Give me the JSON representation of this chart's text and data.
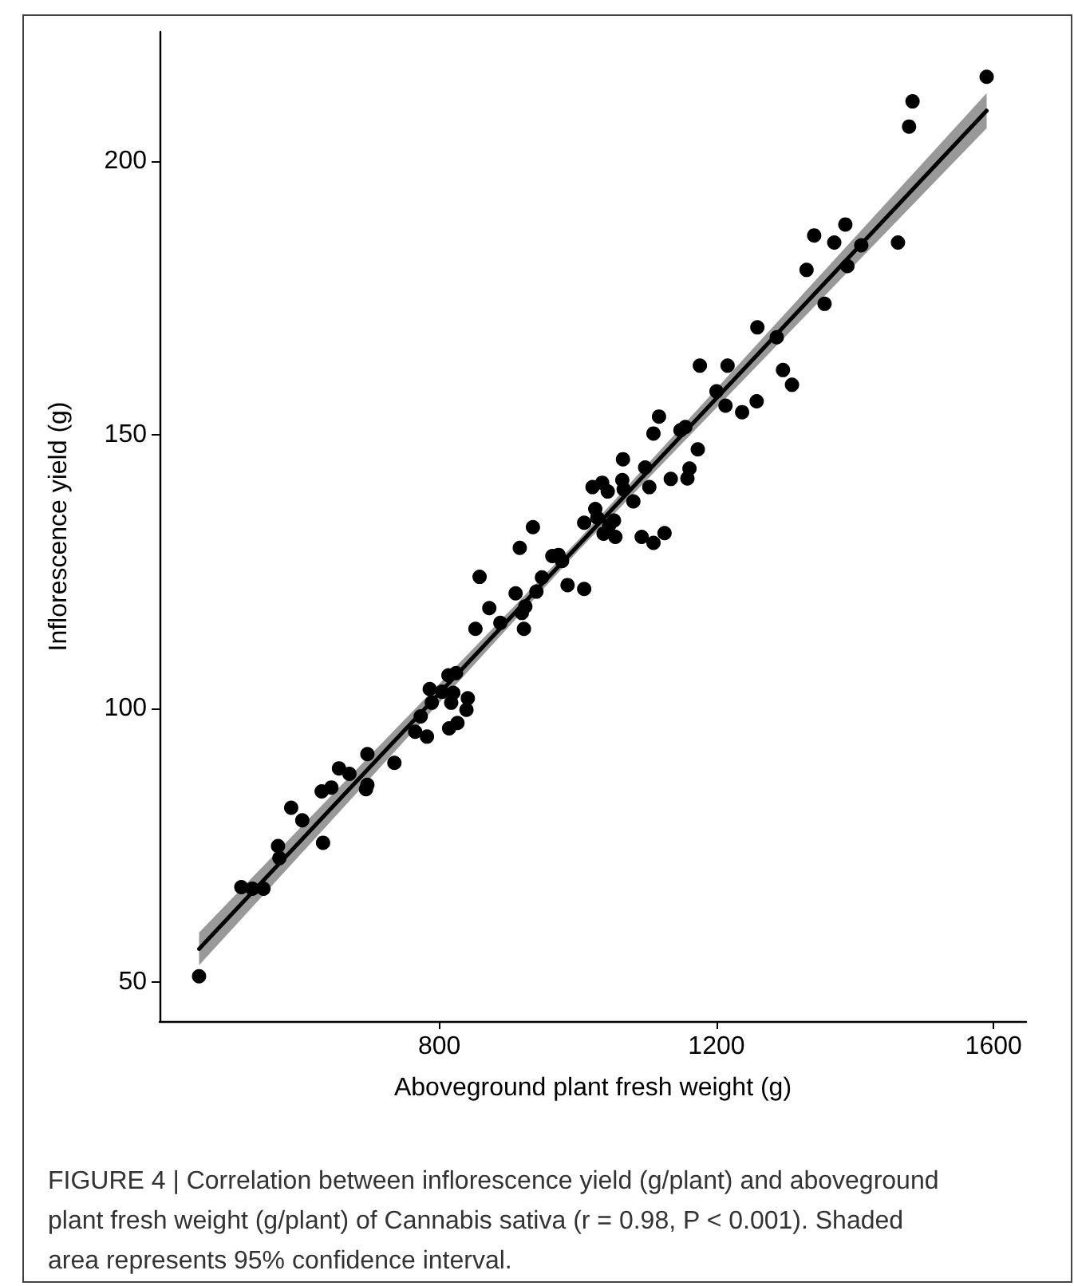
{
  "chart_data": {
    "type": "scatter",
    "xlabel": "Aboveground plant fresh weight (g)",
    "ylabel": "Inflorescence yield (g)",
    "annotations": [
      "FIGURE 4 | Correlation between inflorescence yield (g/plant) and aboveground plant fresh weight (g/plant) of Cannabis sativa (r = 0.98, P < 0.001). Shaded area represents 95% confidence interval."
    ],
    "xlim": [
      396,
      1647
    ],
    "xticks": [
      800,
      1200,
      1600
    ],
    "ylim": [
      42.8,
      223.6
    ],
    "yticks": [
      50,
      100,
      150,
      200
    ],
    "grid": false,
    "marker": "circle",
    "series": [
      {
        "color": "#000000",
        "x": [
          453,
          514,
          530,
          546,
          567,
          569,
          586,
          602,
          632,
          630,
          644,
          655,
          670,
          696,
          694,
          696,
          735,
          765,
          773,
          782,
          786,
          789,
          804,
          813,
          814,
          824,
          820,
          817,
          826,
          839,
          841,
          852,
          858,
          872,
          888,
          910,
          916,
          919,
          924,
          922,
          935,
          940,
          948,
          963,
          972,
          977,
          985,
          1009,
          1009,
          1021,
          1025,
          1028,
          1035,
          1037,
          1043,
          1045,
          1052,
          1054,
          1064,
          1065,
          1066,
          1080,
          1092,
          1097,
          1103,
          1109,
          1109,
          1117,
          1125,
          1134,
          1148,
          1155,
          1158,
          1161,
          1173,
          1176,
          1200,
          1213,
          1216,
          1237,
          1258,
          1259,
          1287,
          1296,
          1309,
          1330,
          1341,
          1356,
          1370,
          1386,
          1389,
          1409,
          1462,
          1478,
          1483,
          1590
        ],
        "values": [
          51,
          67.3,
          67,
          67,
          74.8,
          72.6,
          81.8,
          79.5,
          75.4,
          84.8,
          85.5,
          89,
          88,
          91.6,
          85.2,
          86,
          90,
          95.7,
          98.5,
          94.8,
          103.5,
          101,
          103,
          106,
          96.3,
          106.4,
          102.8,
          101,
          97.3,
          99.7,
          101.8,
          114.5,
          124,
          118.3,
          115.6,
          121,
          129.3,
          117.4,
          118.6,
          114.5,
          133.1,
          121.3,
          123.9,
          127.8,
          128,
          126.9,
          122.5,
          121.8,
          133.9,
          140.4,
          136.4,
          134.8,
          141.2,
          131.9,
          139.6,
          133.4,
          134.3,
          131.3,
          141.7,
          145.5,
          140,
          137.8,
          131.3,
          144,
          140.4,
          130.2,
          150.2,
          153.3,
          132,
          141.9,
          150.8,
          151.4,
          142,
          143.8,
          147.3,
          162.6,
          157.9,
          155.3,
          162.6,
          154.1,
          156.1,
          169.6,
          167.8,
          161.8,
          159.1,
          180.1,
          186.4,
          173.9,
          185.1,
          188.4,
          180.8,
          184.6,
          185.1,
          206.3,
          210.9,
          215.4
        ]
      },
      {
        "type": "line",
        "color": "#000000",
        "line_style": "solid",
        "marker": "none",
        "x": [
          453,
          1000,
          1590
        ],
        "values": [
          56,
          129.7,
          209.2
        ],
        "lower": [
          53,
          128.7,
          206
        ],
        "upper": [
          59,
          130.7,
          212.4
        ]
      }
    ]
  }
}
